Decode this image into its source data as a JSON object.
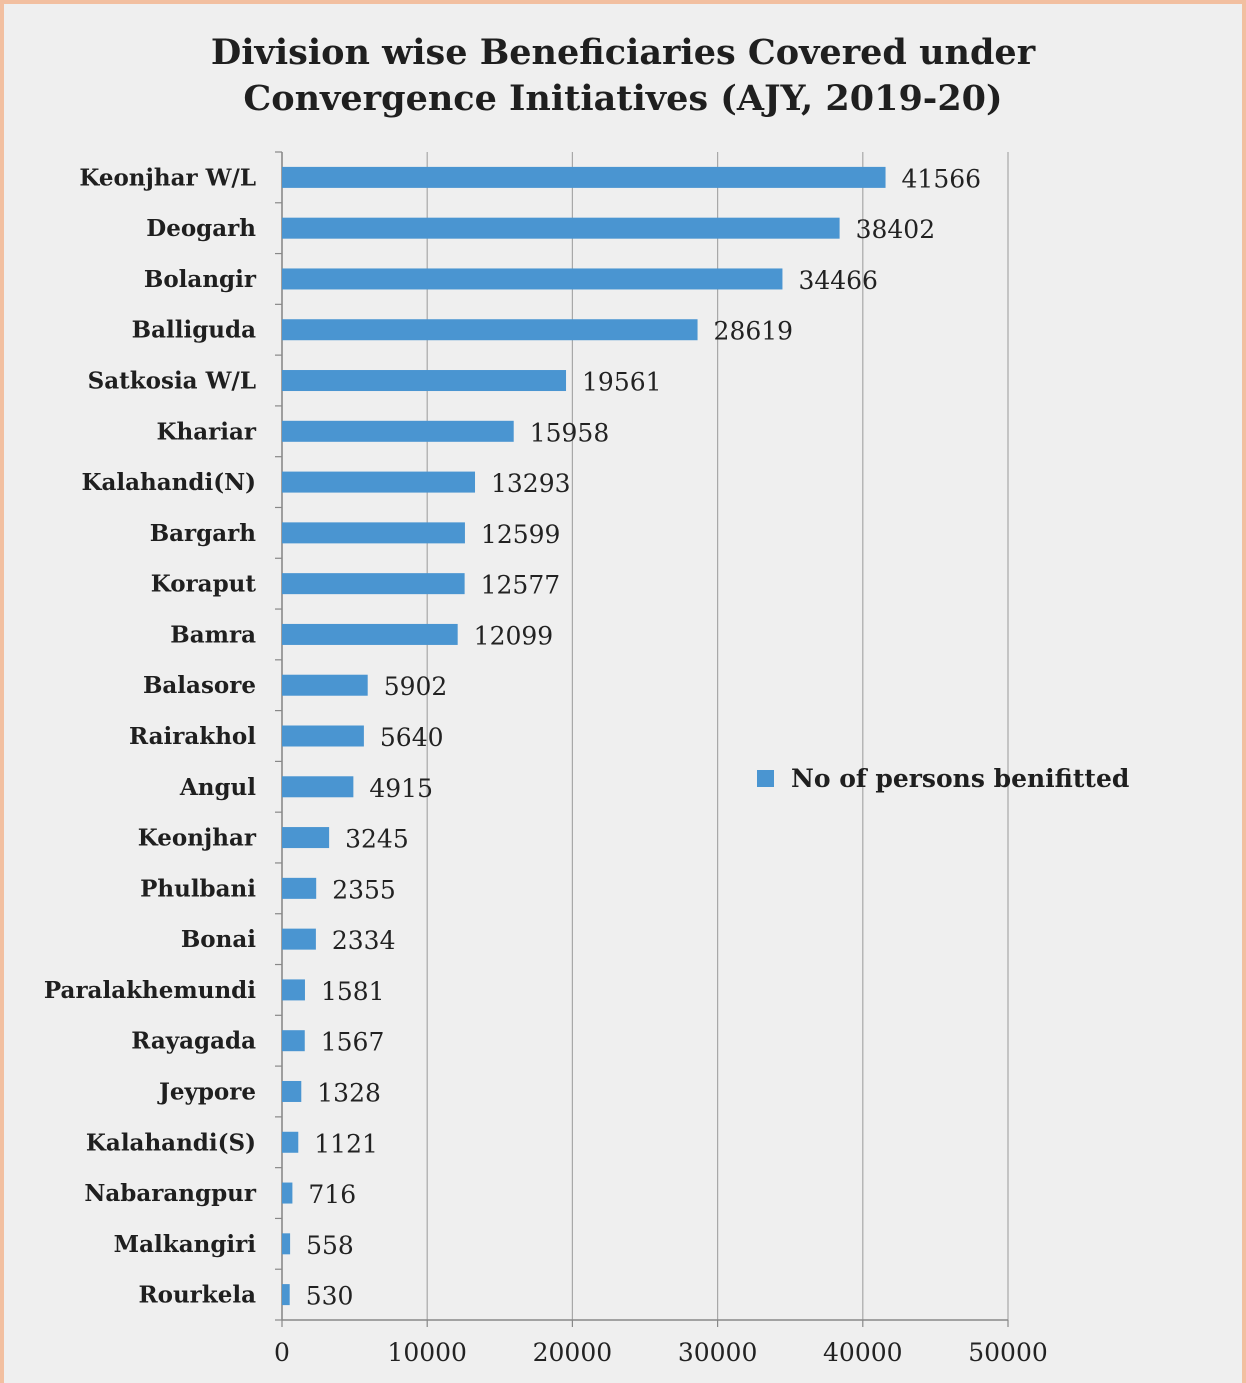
{
  "chart_data": {
    "type": "bar",
    "orientation": "horizontal",
    "title": "Division wise Beneficiaries Covered under\nConvergence Initiatives (AJY, 2019-20)",
    "xlabel": "",
    "ylabel": "",
    "xlim": [
      0,
      50000
    ],
    "x_ticks": [
      "0",
      "10000",
      "20000",
      "30000",
      "40000",
      "50000"
    ],
    "grid": "vertical",
    "legend_position": "right",
    "bar_color": "#4a95d1",
    "categories": [
      "Keonjhar W/L",
      "Deogarh",
      "Bolangir",
      "Balliguda",
      "Satkosia W/L",
      "Khariar",
      "Kalahandi(N)",
      "Bargarh",
      "Koraput",
      "Bamra",
      "Balasore",
      "Rairakhol",
      "Angul",
      "Keonjhar",
      "Phulbani",
      "Bonai",
      "Paralakhemundi",
      "Rayagada",
      "Jeypore",
      "Kalahandi(S)",
      "Nabarangpur",
      "Malkangiri",
      "Rourkela"
    ],
    "series": [
      {
        "name": "No of persons benifitted",
        "values": [
          41566,
          38402,
          34466,
          28619,
          19561,
          15958,
          13293,
          12599,
          12577,
          12099,
          5902,
          5640,
          4915,
          3245,
          2355,
          2334,
          1581,
          1567,
          1328,
          1121,
          716,
          558,
          530
        ]
      }
    ]
  }
}
